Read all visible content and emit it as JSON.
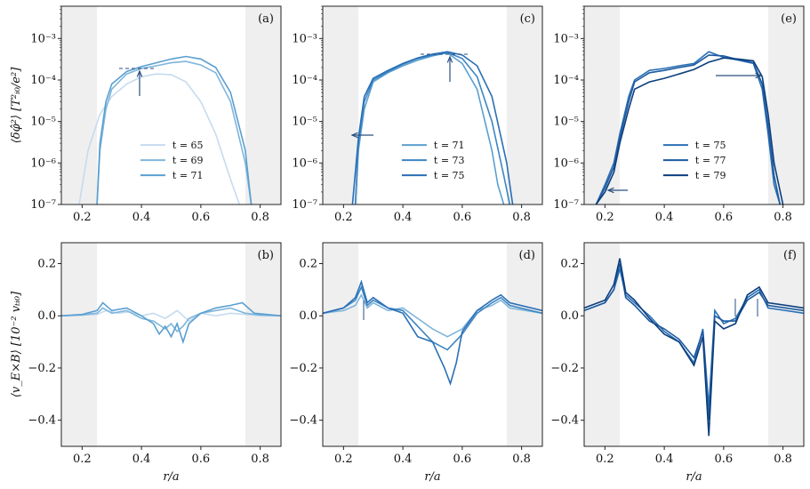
{
  "chart_data": [
    {
      "type": "line",
      "panel_label": "(a)",
      "yscale": "log",
      "ylim": [
        1e-07,
        0.006
      ],
      "xlim": [
        0.13,
        0.87
      ],
      "ylabel": "⟨δφ̂²⟩ [T²ᵢ₀/e²]",
      "xlabel": "",
      "ytick_labels": [
        "10⁻⁷",
        "10⁻⁶",
        "10⁻⁵",
        "10⁻⁴",
        "10⁻³"
      ],
      "xtick_labels": [
        "0.2",
        "0.4",
        "0.6",
        "0.8"
      ],
      "shaded_regions": [
        [
          0.13,
          0.25
        ],
        [
          0.75,
          0.87
        ]
      ],
      "legend_position": "lower-center",
      "series": [
        {
          "name": "t = 65",
          "color": "#c6dbef",
          "x": [
            0.19,
            0.22,
            0.26,
            0.3,
            0.35,
            0.4,
            0.45,
            0.5,
            0.55,
            0.6,
            0.65,
            0.7,
            0.73
          ],
          "y": [
            1e-07,
            2e-06,
            1.5e-05,
            4e-05,
            8e-05,
            0.00012,
            0.00014,
            0.000135,
            9e-05,
            3e-05,
            5e-06,
            4e-07,
            1e-07
          ]
        },
        {
          "name": "t = 69",
          "color": "#7fb5db",
          "x": [
            0.25,
            0.26,
            0.28,
            0.3,
            0.35,
            0.4,
            0.45,
            0.5,
            0.55,
            0.6,
            0.65,
            0.7,
            0.75,
            0.77
          ],
          "y": [
            1e-07,
            2e-06,
            2e-05,
            6e-05,
            0.00014,
            0.00019,
            0.00022,
            0.00026,
            0.00028,
            0.00023,
            0.00015,
            3e-05,
            1e-06,
            1e-07
          ]
        },
        {
          "name": "t = 71",
          "color": "#5a9fd1",
          "x": [
            0.25,
            0.26,
            0.28,
            0.3,
            0.35,
            0.4,
            0.45,
            0.5,
            0.55,
            0.6,
            0.65,
            0.7,
            0.75,
            0.77
          ],
          "y": [
            1e-07,
            3e-06,
            3e-05,
            8e-05,
            0.00016,
            0.00021,
            0.00026,
            0.00032,
            0.00037,
            0.00032,
            0.0002,
            5e-05,
            2e-06,
            1e-07
          ]
        }
      ]
    },
    {
      "type": "line",
      "panel_label": "(c)",
      "yscale": "log",
      "ylim": [
        1e-07,
        0.006
      ],
      "xlim": [
        0.13,
        0.87
      ],
      "ytick_labels": [
        "10⁻⁷",
        "10⁻⁶",
        "10⁻⁵",
        "10⁻⁴",
        "10⁻³"
      ],
      "xtick_labels": [
        "0.2",
        "0.4",
        "0.6",
        "0.8"
      ],
      "shaded_regions": [
        [
          0.13,
          0.25
        ],
        [
          0.75,
          0.87
        ]
      ],
      "legend_position": "lower-center",
      "series": [
        {
          "name": "t = 71",
          "color": "#5a9fd1",
          "x": [
            0.24,
            0.25,
            0.27,
            0.3,
            0.35,
            0.4,
            0.45,
            0.5,
            0.55,
            0.6,
            0.65,
            0.7,
            0.72,
            0.74
          ],
          "y": [
            1e-07,
            2e-06,
            2e-05,
            9e-05,
            0.00015,
            0.00022,
            0.0003,
            0.00038,
            0.00045,
            0.00025,
            6e-05,
            2e-06,
            3e-07,
            1e-07
          ]
        },
        {
          "name": "t = 73",
          "color": "#3d85c3",
          "x": [
            0.24,
            0.25,
            0.27,
            0.3,
            0.35,
            0.4,
            0.45,
            0.5,
            0.55,
            0.6,
            0.65,
            0.7,
            0.74,
            0.76
          ],
          "y": [
            1e-07,
            3e-06,
            3e-05,
            0.0001,
            0.00016,
            0.00024,
            0.00033,
            0.0004,
            0.00046,
            0.00033,
            0.00012,
            1e-05,
            5e-07,
            1e-07
          ]
        },
        {
          "name": "t = 75",
          "color": "#2a6fb4",
          "x": [
            0.23,
            0.25,
            0.27,
            0.3,
            0.35,
            0.4,
            0.45,
            0.5,
            0.55,
            0.6,
            0.65,
            0.7,
            0.75,
            0.77
          ],
          "y": [
            1e-07,
            4e-06,
            4e-05,
            0.00011,
            0.00017,
            0.00025,
            0.00034,
            0.00042,
            0.00048,
            0.0004,
            0.00022,
            4e-05,
            1e-06,
            1e-07
          ]
        }
      ]
    },
    {
      "type": "line",
      "panel_label": "(e)",
      "yscale": "log",
      "ylim": [
        1e-07,
        0.006
      ],
      "xlim": [
        0.13,
        0.87
      ],
      "ytick_labels": [
        "10⁻⁷",
        "10⁻⁶",
        "10⁻⁵",
        "10⁻⁴",
        "10⁻³"
      ],
      "xtick_labels": [
        "0.2",
        "0.4",
        "0.6",
        "0.8"
      ],
      "shaded_regions": [
        [
          0.13,
          0.25
        ],
        [
          0.75,
          0.87
        ]
      ],
      "legend_position": "lower-center",
      "series": [
        {
          "name": "t = 75",
          "color": "#2a6fb4",
          "x": [
            0.17,
            0.2,
            0.23,
            0.25,
            0.28,
            0.3,
            0.35,
            0.4,
            0.45,
            0.5,
            0.55,
            0.6,
            0.65,
            0.7,
            0.73,
            0.75,
            0.77,
            0.79
          ],
          "y": [
            1e-07,
            3e-07,
            1e-06,
            5e-06,
            4e-05,
            0.0001,
            0.00017,
            0.00019,
            0.00022,
            0.00025,
            0.00048,
            0.00035,
            0.0003,
            0.00025,
            6e-05,
            5e-06,
            3e-07,
            1e-07
          ]
        },
        {
          "name": "t = 77",
          "color": "#1d5aa0",
          "x": [
            0.17,
            0.2,
            0.23,
            0.25,
            0.28,
            0.3,
            0.35,
            0.4,
            0.45,
            0.5,
            0.55,
            0.6,
            0.65,
            0.7,
            0.73,
            0.75,
            0.77,
            0.79
          ],
          "y": [
            1e-07,
            2.5e-07,
            8e-07,
            4e-06,
            3e-05,
            9e-05,
            0.00015,
            0.00017,
            0.0002,
            0.00023,
            0.0004,
            0.00038,
            0.00031,
            0.00026,
            8e-05,
            8e-06,
            5e-07,
            1e-07
          ]
        },
        {
          "name": "t = 79",
          "color": "#0c3e7d",
          "x": [
            0.17,
            0.2,
            0.23,
            0.25,
            0.28,
            0.3,
            0.35,
            0.4,
            0.45,
            0.5,
            0.55,
            0.6,
            0.65,
            0.7,
            0.73,
            0.75,
            0.77,
            0.8
          ],
          "y": [
            1e-07,
            2e-07,
            6e-07,
            3e-06,
            2e-05,
            6e-05,
            9e-05,
            0.00011,
            0.00014,
            0.00018,
            0.00027,
            0.00034,
            0.00032,
            0.00029,
            0.00012,
            1.5e-05,
            1e-06,
            1e-07
          ]
        }
      ]
    },
    {
      "type": "line",
      "panel_label": "(b)",
      "yscale": "linear",
      "ylim": [
        -0.5,
        0.28
      ],
      "xlim": [
        0.13,
        0.87
      ],
      "ylabel": "⟨v_E×B⟩ [10⁻² vₜᵢ₀]",
      "xlabel": "r/a",
      "ytick_labels": [
        "−0.4",
        "−0.2",
        "0.0",
        "0.2"
      ],
      "xtick_labels": [
        "0.2",
        "0.4",
        "0.6",
        "0.8"
      ],
      "shaded_regions": [
        [
          0.13,
          0.25
        ],
        [
          0.75,
          0.87
        ]
      ],
      "series": [
        {
          "name": "t = 65",
          "color": "#c6dbef",
          "x": [
            0.13,
            0.25,
            0.28,
            0.32,
            0.36,
            0.4,
            0.44,
            0.48,
            0.52,
            0.56,
            0.6,
            0.65,
            0.7,
            0.75,
            0.8,
            0.87
          ],
          "y": [
            0,
            0.005,
            0.02,
            0.01,
            0.015,
            0,
            0.01,
            -0.01,
            0.02,
            -0.02,
            0.01,
            0,
            0.01,
            0.005,
            0,
            0
          ]
        },
        {
          "name": "t = 69",
          "color": "#7fb5db",
          "x": [
            0.13,
            0.2,
            0.25,
            0.27,
            0.3,
            0.35,
            0.4,
            0.44,
            0.48,
            0.5,
            0.52,
            0.54,
            0.56,
            0.6,
            0.65,
            0.7,
            0.75,
            0.8,
            0.87
          ],
          "y": [
            0,
            0.003,
            0.01,
            0.03,
            0.01,
            0.02,
            -0.01,
            -0.02,
            -0.05,
            -0.03,
            -0.06,
            -0.04,
            -0.01,
            0.01,
            0.02,
            0.03,
            0.01,
            0.003,
            0
          ]
        },
        {
          "name": "t = 71",
          "color": "#5a9fd1",
          "x": [
            0.13,
            0.2,
            0.25,
            0.27,
            0.3,
            0.35,
            0.4,
            0.44,
            0.46,
            0.48,
            0.5,
            0.52,
            0.54,
            0.56,
            0.6,
            0.65,
            0.7,
            0.74,
            0.78,
            0.87
          ],
          "y": [
            0,
            0.005,
            0.02,
            0.05,
            0.02,
            0.03,
            0,
            -0.03,
            -0.07,
            -0.04,
            -0.08,
            -0.03,
            -0.1,
            -0.03,
            0.01,
            0.03,
            0.04,
            0.05,
            0.01,
            0
          ]
        }
      ]
    },
    {
      "type": "line",
      "panel_label": "(d)",
      "yscale": "linear",
      "ylim": [
        -0.5,
        0.28
      ],
      "xlim": [
        0.13,
        0.87
      ],
      "xlabel": "r/a",
      "ytick_labels": [
        "−0.4",
        "−0.2",
        "0.0",
        "0.2"
      ],
      "xtick_labels": [
        "0.2",
        "0.4",
        "0.6",
        "0.8"
      ],
      "shaded_regions": [
        [
          0.13,
          0.25
        ],
        [
          0.75,
          0.87
        ]
      ],
      "series": [
        {
          "name": "t = 71",
          "color": "#7fb5db",
          "x": [
            0.13,
            0.2,
            0.24,
            0.26,
            0.28,
            0.3,
            0.35,
            0.4,
            0.45,
            0.5,
            0.55,
            0.6,
            0.65,
            0.7,
            0.73,
            0.76,
            0.87
          ],
          "y": [
            0.01,
            0.02,
            0.04,
            0.08,
            0.03,
            0.05,
            0.02,
            0.03,
            -0.01,
            -0.05,
            -0.08,
            -0.05,
            0.02,
            0.04,
            0.06,
            0.03,
            0.01
          ]
        },
        {
          "name": "t = 73",
          "color": "#3d85c3",
          "x": [
            0.13,
            0.2,
            0.24,
            0.26,
            0.28,
            0.3,
            0.35,
            0.4,
            0.45,
            0.5,
            0.55,
            0.6,
            0.65,
            0.7,
            0.73,
            0.76,
            0.87
          ],
          "y": [
            0.01,
            0.03,
            0.06,
            0.11,
            0.04,
            0.06,
            0.03,
            0.02,
            -0.04,
            -0.1,
            -0.13,
            -0.07,
            0.01,
            0.05,
            0.07,
            0.04,
            0.01
          ]
        },
        {
          "name": "t = 75",
          "color": "#2a6fb4",
          "x": [
            0.13,
            0.2,
            0.24,
            0.26,
            0.28,
            0.3,
            0.35,
            0.4,
            0.45,
            0.5,
            0.54,
            0.56,
            0.58,
            0.6,
            0.65,
            0.7,
            0.73,
            0.76,
            0.87
          ],
          "y": [
            0.01,
            0.03,
            0.07,
            0.13,
            0.05,
            0.07,
            0.03,
            0.01,
            -0.08,
            -0.1,
            -0.2,
            -0.26,
            -0.18,
            -0.06,
            0.02,
            0.06,
            0.08,
            0.05,
            0.02
          ]
        }
      ]
    },
    {
      "type": "line",
      "panel_label": "(f)",
      "yscale": "linear",
      "ylim": [
        -0.5,
        0.28
      ],
      "xlim": [
        0.13,
        0.87
      ],
      "xlabel": "r/a",
      "ytick_labels": [
        "−0.4",
        "−0.2",
        "0.0",
        "0.2"
      ],
      "xtick_labels": [
        "0.2",
        "0.4",
        "0.6",
        "0.8"
      ],
      "shaded_regions": [
        [
          0.13,
          0.25
        ],
        [
          0.75,
          0.87
        ]
      ],
      "series": [
        {
          "name": "t = 75",
          "color": "#2a6fb4",
          "x": [
            0.13,
            0.2,
            0.23,
            0.25,
            0.27,
            0.3,
            0.35,
            0.4,
            0.45,
            0.5,
            0.53,
            0.55,
            0.57,
            0.6,
            0.64,
            0.68,
            0.72,
            0.75,
            0.87
          ],
          "y": [
            0.02,
            0.05,
            0.1,
            0.18,
            0.08,
            0.05,
            0,
            -0.06,
            -0.1,
            -0.18,
            -0.05,
            -0.35,
            0.02,
            -0.03,
            -0.01,
            0.07,
            0.1,
            0.03,
            0.01
          ]
        },
        {
          "name": "t = 77",
          "color": "#1d5aa0",
          "x": [
            0.13,
            0.2,
            0.23,
            0.25,
            0.27,
            0.3,
            0.35,
            0.4,
            0.45,
            0.5,
            0.53,
            0.55,
            0.57,
            0.6,
            0.64,
            0.68,
            0.72,
            0.75,
            0.87
          ],
          "y": [
            0.02,
            0.05,
            0.1,
            0.2,
            0.07,
            0.04,
            -0.02,
            -0.05,
            -0.09,
            -0.16,
            -0.06,
            -0.4,
            0,
            -0.02,
            -0.02,
            0.06,
            0.09,
            0.04,
            0.02
          ]
        },
        {
          "name": "t = 79",
          "color": "#0c3e7d",
          "x": [
            0.13,
            0.2,
            0.23,
            0.25,
            0.27,
            0.3,
            0.35,
            0.4,
            0.45,
            0.5,
            0.53,
            0.55,
            0.57,
            0.6,
            0.64,
            0.68,
            0.72,
            0.75,
            0.87
          ],
          "y": [
            0.03,
            0.06,
            0.12,
            0.22,
            0.09,
            0.06,
            -0.01,
            -0.07,
            -0.1,
            -0.19,
            -0.08,
            -0.46,
            -0.02,
            -0.05,
            -0.03,
            0.08,
            0.11,
            0.05,
            0.03
          ]
        }
      ]
    }
  ]
}
